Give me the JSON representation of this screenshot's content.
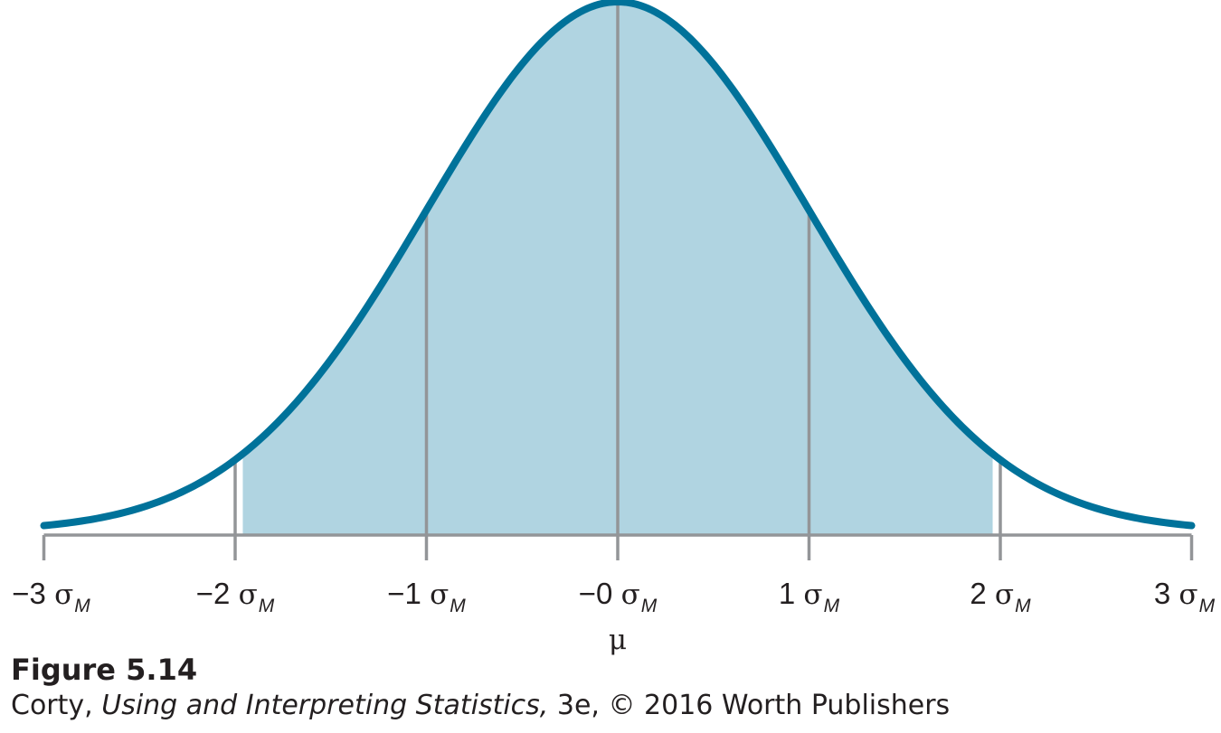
{
  "chart_data": {
    "type": "area",
    "distribution": "normal",
    "mean_label": "μ",
    "x_ticks": [
      {
        "value": -3,
        "label": "−3",
        "symbol": "σ",
        "subscript": "M"
      },
      {
        "value": -2,
        "label": "−2",
        "symbol": "σ",
        "subscript": "M"
      },
      {
        "value": -1,
        "label": "−1",
        "symbol": "σ",
        "subscript": "M"
      },
      {
        "value": 0,
        "label": "−0",
        "symbol": "σ",
        "subscript": "M"
      },
      {
        "value": 1,
        "label": "1",
        "symbol": "σ",
        "subscript": "M"
      },
      {
        "value": 2,
        "label": "2",
        "symbol": "σ",
        "subscript": "M"
      },
      {
        "value": 3,
        "label": "3",
        "symbol": "σ",
        "subscript": "M"
      }
    ],
    "xlim": [
      -3,
      3
    ],
    "shaded_region": [
      -1.96,
      1.96
    ],
    "reference_lines": [
      -2,
      -1,
      0,
      1,
      2
    ],
    "colors": {
      "curve": "#00729a",
      "fill": "#b0d4e1",
      "axis": "#939598",
      "lines": "#939598"
    }
  },
  "figure": {
    "title": "Figure 5.14",
    "credit_prefix": "Corty, ",
    "credit_book": "Using and Interpreting Statistics,",
    "credit_suffix": " 3e, © 2016 Worth Publishers"
  }
}
